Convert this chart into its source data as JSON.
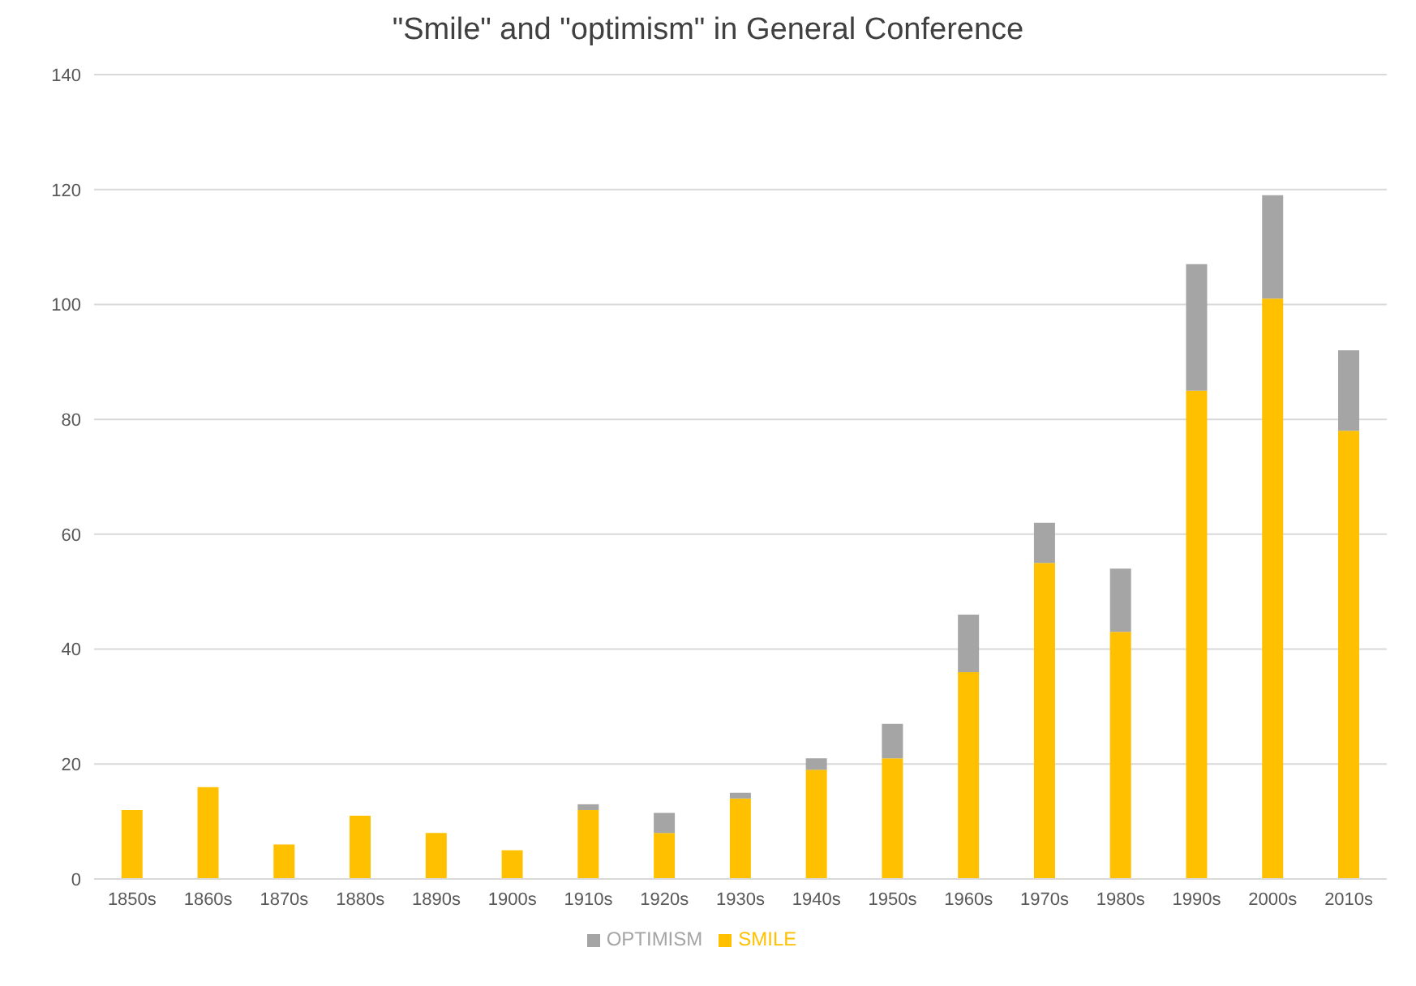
{
  "chart_data": {
    "type": "bar",
    "title": "\"Smile\" and \"optimism\"  in General Conference",
    "categories": [
      "1850s",
      "1860s",
      "1870s",
      "1880s",
      "1890s",
      "1900s",
      "1910s",
      "1920s",
      "1930s",
      "1940s",
      "1950s",
      "1960s",
      "1970s",
      "1980s",
      "1990s",
      "2000s",
      "2010s"
    ],
    "series": [
      {
        "name": "SMILE",
        "color": "#ffc000",
        "values": [
          12,
          16,
          6,
          11,
          8,
          5,
          12,
          8,
          14,
          19,
          21,
          36,
          55,
          43,
          85,
          101,
          78
        ]
      },
      {
        "name": "OPTIMISM",
        "color": "#a5a5a5",
        "values": [
          0,
          0,
          0,
          0,
          0,
          0,
          1,
          3.5,
          1,
          2,
          6,
          10,
          7,
          11,
          22,
          18,
          14
        ]
      }
    ],
    "stacked": true,
    "ylim": [
      0,
      140
    ],
    "yticks": [
      0,
      20,
      40,
      60,
      80,
      100,
      120,
      140
    ],
    "grid": "y",
    "legend": "bottom"
  }
}
